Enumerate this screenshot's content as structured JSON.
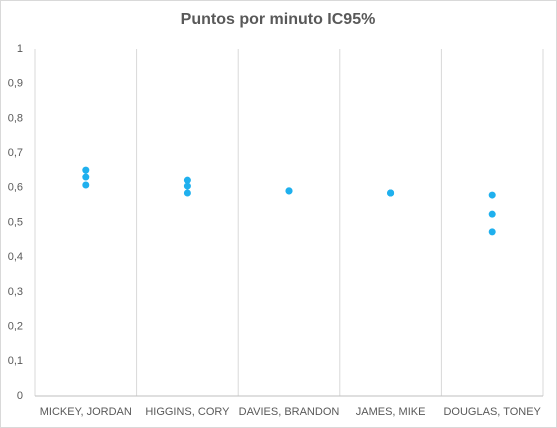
{
  "chart_data": {
    "type": "scatter",
    "title": "Puntos por minuto IC95%",
    "categories": [
      "MICKEY, JORDAN",
      "HIGGINS, CORY",
      "DAVIES, BRANDON",
      "JAMES, MIKE",
      "DOUGLAS, TONEY"
    ],
    "series": [
      {
        "color": "#1fb0ee",
        "values": [
          0.651,
          0.622,
          0.591,
          0.585,
          0.579
        ]
      },
      {
        "color": "#1fb0ee",
        "values": [
          0.631,
          0.605,
          0.591,
          0.585,
          0.524
        ]
      },
      {
        "color": "#1fb0ee",
        "values": [
          0.608,
          0.585,
          0.591,
          0.585,
          0.473
        ]
      }
    ],
    "ylim": [
      0,
      1
    ],
    "yticks": [
      0,
      {
        "value": 0.1,
        "label": "0,1"
      },
      {
        "value": 0.2,
        "label": "0,2"
      },
      {
        "value": 0.3,
        "label": "0,3"
      },
      {
        "value": 0.4,
        "label": "0,4"
      },
      {
        "value": 0.5,
        "label": "0,5"
      },
      {
        "value": 0.6,
        "label": "0,6"
      },
      {
        "value": 0.7,
        "label": "0,7"
      },
      {
        "value": 0.8,
        "label": "0,8"
      },
      {
        "value": 0.9,
        "label": "0,9"
      },
      1
    ],
    "grid": "x"
  }
}
